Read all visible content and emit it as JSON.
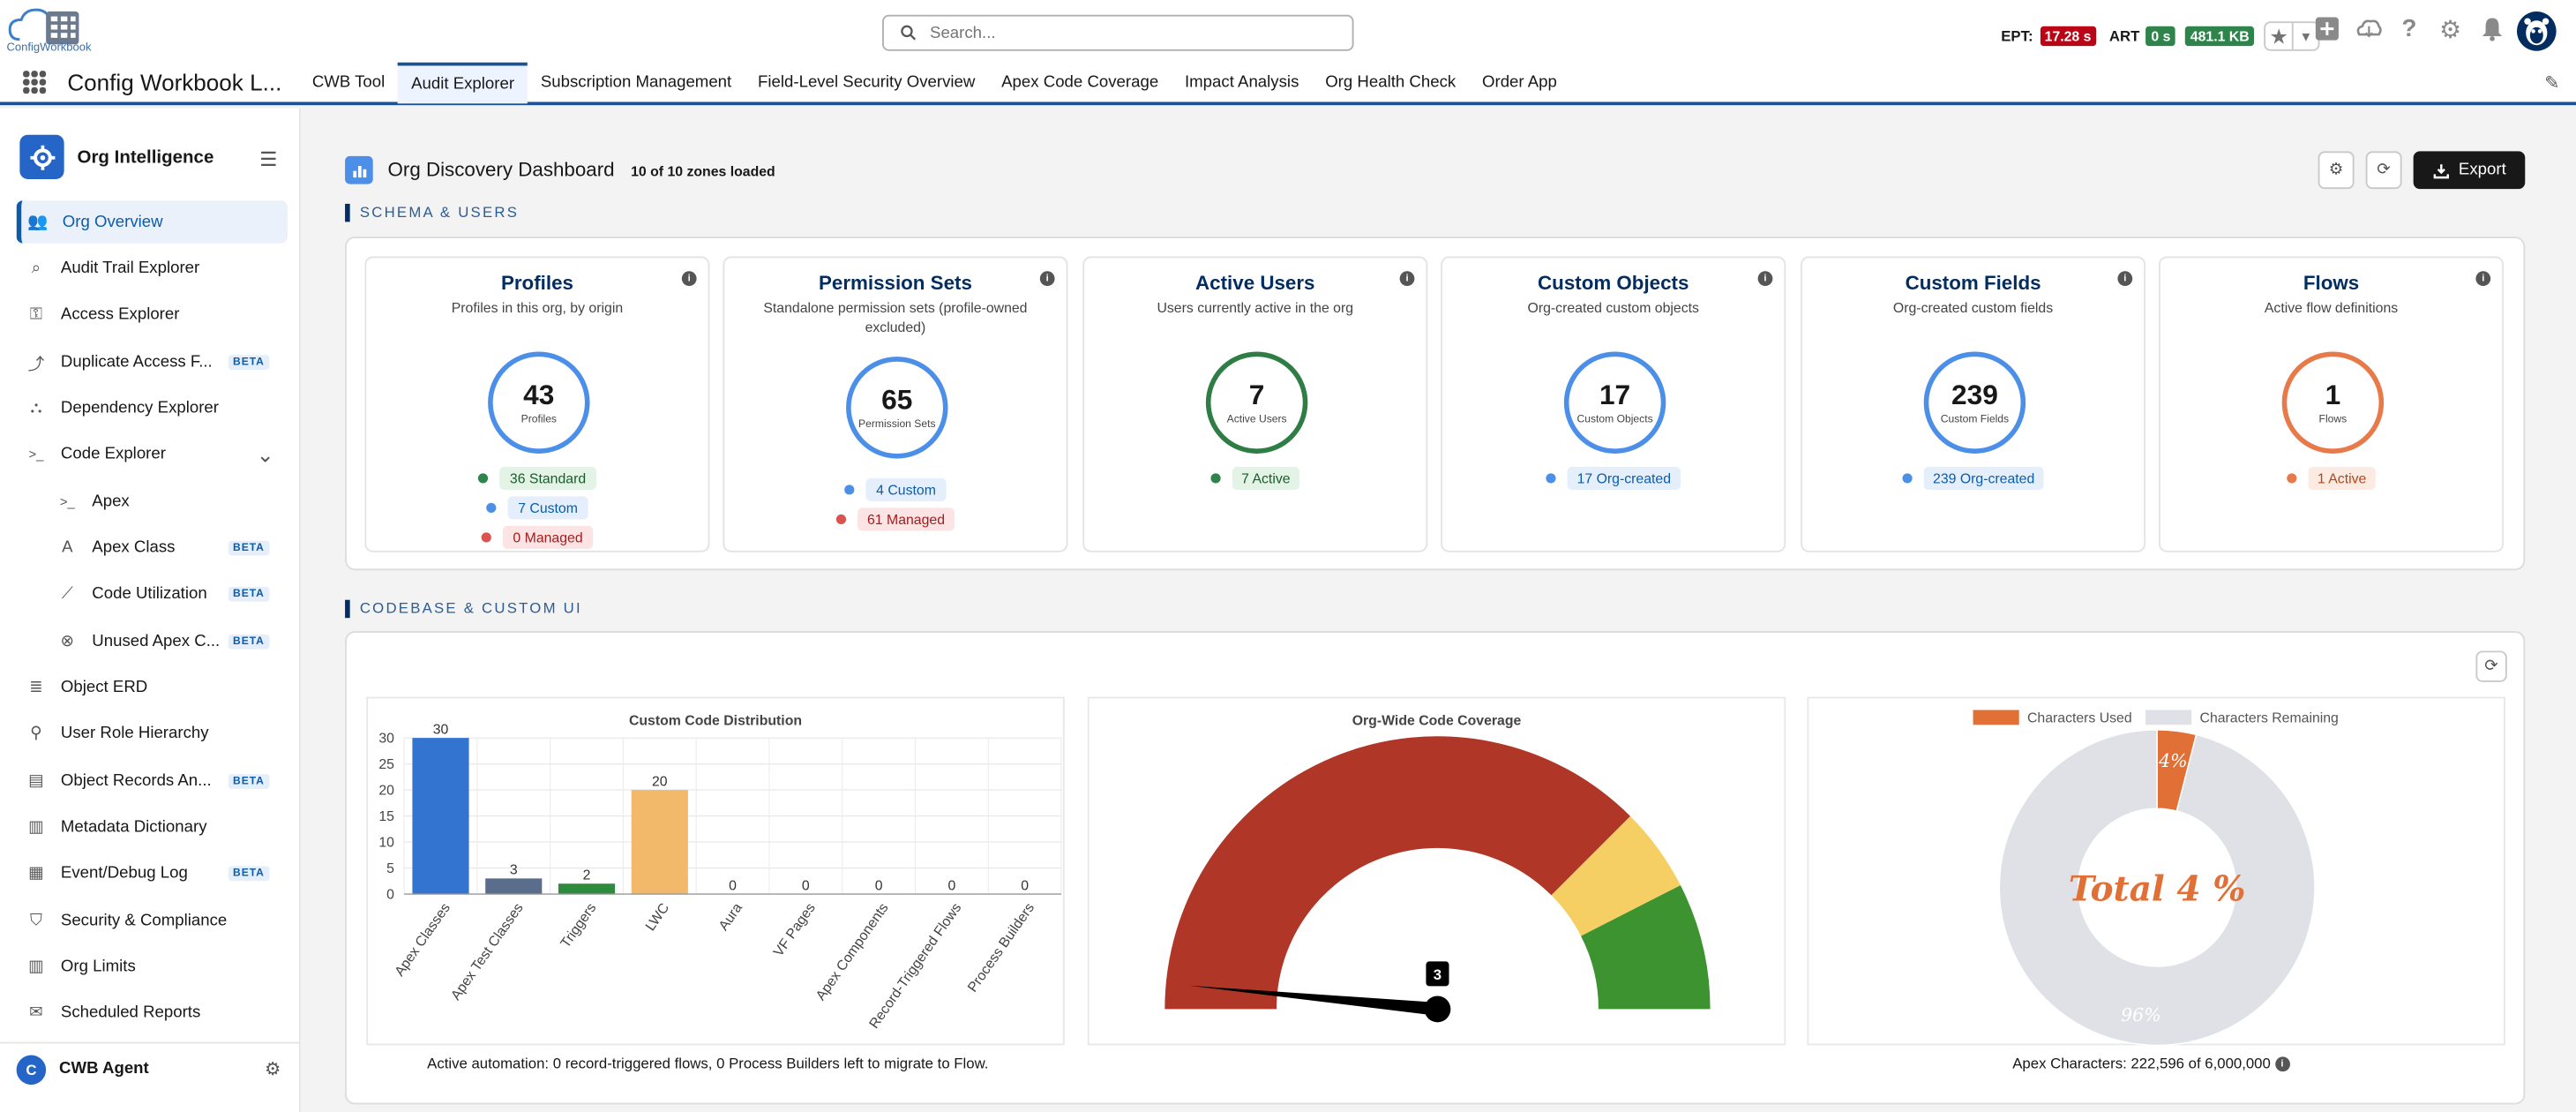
{
  "header": {
    "logo_text": "ConfigWorkbook",
    "search_placeholder": "Search...",
    "ept_label": "EPT:",
    "ept_value": "17.28 s",
    "art_label": "ART",
    "art_value": "0 s",
    "size_value": "481.1 KB",
    "colors": {
      "ept": "#ba0517",
      "art": "#2e844a",
      "size": "#2e844a"
    }
  },
  "nav": {
    "app_name": "Config Workbook L...",
    "tabs": [
      "CWB Tool",
      "Audit Explorer",
      "Subscription Management",
      "Field-Level Security Overview",
      "Apex Code Coverage",
      "Impact Analysis",
      "Org Health Check",
      "Order App"
    ],
    "active_tab": "Audit Explorer"
  },
  "sidebar": {
    "title": "Org Intelligence",
    "items": [
      {
        "label": "Org Overview",
        "icon": "users-icon",
        "active": true
      },
      {
        "label": "Audit Trail Explorer",
        "icon": "search-icon"
      },
      {
        "label": "Access Explorer",
        "icon": "key-icon"
      },
      {
        "label": "Duplicate Access F...",
        "icon": "merge-icon",
        "badge": "BETA"
      },
      {
        "label": "Dependency Explorer",
        "icon": "hierarchy-icon"
      },
      {
        "label": "Code Explorer",
        "icon": "terminal-icon",
        "expanded": true
      },
      {
        "label": "Apex",
        "icon": "prompt-icon",
        "sub": true
      },
      {
        "label": "Apex Class",
        "icon": "letter-a-icon",
        "sub": true,
        "badge": "BETA"
      },
      {
        "label": "Code Utilization",
        "icon": "line-chart-icon",
        "sub": true,
        "badge": "BETA"
      },
      {
        "label": "Unused Apex C...",
        "icon": "close-circle-icon",
        "sub": true,
        "badge": "BETA"
      },
      {
        "label": "Object ERD",
        "icon": "database-icon"
      },
      {
        "label": "User Role Hierarchy",
        "icon": "role-icon"
      },
      {
        "label": "Object Records An...",
        "icon": "records-icon",
        "badge": "BETA"
      },
      {
        "label": "Metadata Dictionary",
        "icon": "book-icon"
      },
      {
        "label": "Event/Debug Log",
        "icon": "log-icon",
        "badge": "BETA"
      },
      {
        "label": "Security & Compliance",
        "icon": "shield-icon"
      },
      {
        "label": "Org Limits",
        "icon": "bar-chart-icon"
      },
      {
        "label": "Scheduled Reports",
        "icon": "mail-icon"
      }
    ],
    "agent": {
      "initial": "C",
      "label": "CWB Agent"
    }
  },
  "dashboard": {
    "title": "Org Discovery Dashboard",
    "zones_loaded": "10 of 10 zones loaded",
    "export_label": "Export"
  },
  "schema_section": {
    "title": "SCHEMA & USERS",
    "cards": [
      {
        "title": "Profiles",
        "subtitle": "Profiles in this org, by origin",
        "count": "43",
        "ring_label": "Profiles",
        "ring_color": "#4c8fe8",
        "tags": [
          {
            "label": "36 Standard",
            "color": "#2e844a",
            "bg": "#e3f4e6",
            "fg": "#1a5a2c"
          },
          {
            "label": "7 Custom",
            "color": "#4c8fe8",
            "bg": "#e5effc",
            "fg": "#0b5cab"
          },
          {
            "label": "0 Managed",
            "color": "#d9534f",
            "bg": "#fbe4e3",
            "fg": "#a61b1b"
          }
        ]
      },
      {
        "title": "Permission Sets",
        "subtitle": "Standalone permission sets (profile-owned excluded)",
        "count": "65",
        "ring_label": "Permission Sets",
        "ring_color": "#4c8fe8",
        "tags": [
          {
            "label": "4 Custom",
            "color": "#4c8fe8",
            "bg": "#e5effc",
            "fg": "#0b5cab"
          },
          {
            "label": "61 Managed",
            "color": "#d9534f",
            "bg": "#fbe4e3",
            "fg": "#a61b1b"
          }
        ]
      },
      {
        "title": "Active Users",
        "subtitle": "Users currently active in the org",
        "count": "7",
        "ring_label": "Active Users",
        "ring_color": "#2e7d45",
        "tags": [
          {
            "label": "7 Active",
            "color": "#2e844a",
            "bg": "#e3f4e6",
            "fg": "#1a5a2c"
          }
        ]
      },
      {
        "title": "Custom Objects",
        "subtitle": "Org-created custom objects",
        "count": "17",
        "ring_label": "Custom Objects",
        "ring_color": "#4c8fe8",
        "tags": [
          {
            "label": "17 Org-created",
            "color": "#4c8fe8",
            "bg": "#e5effc",
            "fg": "#0b5cab"
          }
        ]
      },
      {
        "title": "Custom Fields",
        "subtitle": "Org-created custom fields",
        "count": "239",
        "ring_label": "Custom Fields",
        "ring_color": "#4c8fe8",
        "tags": [
          {
            "label": "239 Org-created",
            "color": "#4c8fe8",
            "bg": "#e5effc",
            "fg": "#0b5cab"
          }
        ]
      },
      {
        "title": "Flows",
        "subtitle": "Active flow definitions",
        "count": "1",
        "ring_label": "Flows",
        "ring_color": "#e87a4a",
        "tags": [
          {
            "label": "1 Active",
            "color": "#e87a4a",
            "bg": "#fcebe2",
            "fg": "#b3461a"
          }
        ]
      }
    ]
  },
  "codebase_section": {
    "title": "CODEBASE & CUSTOM UI",
    "bar_caption": "Active automation: 0 record-triggered flows, 0 Process Builders left to migrate to Flow.",
    "pie_caption": "Apex Characters: 222,596 of 6,000,000"
  },
  "chart_data": [
    {
      "type": "bar",
      "title": "Custom Code Distribution",
      "categories": [
        "Apex Classes",
        "Apex Test Classes",
        "Triggers",
        "LWC",
        "Aura",
        "VF Pages",
        "Apex Components",
        "Record-Triggered Flows",
        "Process Builders"
      ],
      "values": [
        30,
        3,
        2,
        20,
        0,
        0,
        0,
        0,
        0
      ],
      "colors": [
        "#3374d1",
        "#5a6e8c",
        "#2e8b3e",
        "#f2b96b",
        "#cccccc",
        "#cccccc",
        "#cccccc",
        "#cccccc",
        "#cccccc"
      ],
      "ylim": [
        0,
        30
      ],
      "yticks": [
        0,
        5,
        10,
        15,
        20,
        25,
        30
      ],
      "grid": true
    },
    {
      "type": "gauge",
      "title": "Org-Wide Code Coverage",
      "value": 3,
      "value_label": "3",
      "range": [
        0,
        100
      ],
      "bands": [
        {
          "from": 0,
          "to": 75,
          "color": "#b03628"
        },
        {
          "from": 75,
          "to": 85,
          "color": "#f5cf63"
        },
        {
          "from": 85,
          "to": 100,
          "color": "#3c932f"
        }
      ]
    },
    {
      "type": "pie",
      "title": "",
      "legend": [
        "Characters Used",
        "Characters Remaining"
      ],
      "legend_position": "top",
      "center_label": "Total 4 %",
      "slices": [
        {
          "name": "Characters Used",
          "value": 4,
          "label": "4%",
          "color": "#e07036"
        },
        {
          "name": "Characters Remaining",
          "value": 96,
          "label": "96%",
          "color": "#dfe1e6"
        }
      ]
    }
  ]
}
